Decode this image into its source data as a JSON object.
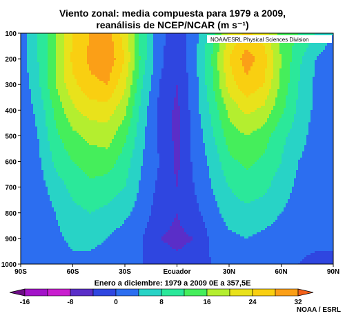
{
  "header": {
    "title_line1": "Viento zonal: media compuesta para 1979 a 2009,",
    "title_line2": "reanálisis de NCEP/NCAR (m s⁻¹)"
  },
  "plot_note": "NOAA/ESRL Physical Sciences Division",
  "footer_credit": "NOAA / ESRL",
  "chart_data": {
    "type": "heatmap",
    "title": "Viento zonal: media compuesta para 1979 a 2009, reanálisis de NCEP/NCAR (m s⁻¹)",
    "xlabel": "Enero a diciembre: 1979 a 2009 0E a 357,5E",
    "x_tick_labels": [
      "90S",
      "60S",
      "30S",
      "Ecuador",
      "30N",
      "60N",
      "90N"
    ],
    "x_tick_values": [
      -90,
      -60,
      -30,
      0,
      30,
      60,
      90
    ],
    "xlim": [
      -90,
      90
    ],
    "y_tick_labels": [
      "100",
      "200",
      "300",
      "400",
      "500",
      "600",
      "700",
      "800",
      "900",
      "1000"
    ],
    "y_tick_values": [
      100,
      200,
      300,
      400,
      500,
      600,
      700,
      800,
      900,
      1000
    ],
    "ylim": [
      1000,
      100
    ],
    "y_inverted": true,
    "colorbar": {
      "levels": [
        -20,
        -16,
        -12,
        -8,
        -4,
        0,
        4,
        8,
        12,
        16,
        20,
        24,
        28,
        32,
        36
      ],
      "tick_labels": [
        "-16",
        "-8",
        "0",
        "8",
        "16",
        "24",
        "32"
      ],
      "tick_values": [
        -16,
        -8,
        0,
        8,
        16,
        24,
        32
      ],
      "colors": [
        "#6e0d87",
        "#a313c9",
        "#c91ecf",
        "#5a2ec8",
        "#2f46e0",
        "#2c6ef0",
        "#28d3c6",
        "#2be89a",
        "#45ee5b",
        "#b4ee2f",
        "#e9e21b",
        "#f9cf11",
        "#fb9f17",
        "#f4601a"
      ]
    },
    "x": [
      -90,
      -80,
      -70,
      -60,
      -50,
      -40,
      -30,
      -20,
      -10,
      0,
      10,
      20,
      30,
      40,
      50,
      60,
      70,
      80,
      90
    ],
    "y": [
      100,
      200,
      300,
      400,
      500,
      600,
      700,
      800,
      900,
      1000
    ],
    "z": [
      [
        2,
        8,
        16,
        24,
        28,
        30,
        22,
        10,
        1,
        -2,
        2,
        10,
        21,
        25,
        22,
        14,
        12,
        8,
        4
      ],
      [
        2,
        8,
        16,
        25,
        29,
        31,
        24,
        10,
        1,
        -3,
        3,
        12,
        24,
        30,
        26,
        16,
        9,
        4,
        1
      ],
      [
        1,
        7,
        16,
        23,
        27,
        28,
        21,
        8,
        0,
        -4,
        2,
        11,
        22,
        27,
        24,
        15,
        8,
        3,
        1
      ],
      [
        1,
        5,
        13,
        19,
        22,
        22,
        17,
        6,
        -1,
        -5,
        2,
        9,
        17,
        21,
        19,
        13,
        7,
        3,
        1
      ],
      [
        1,
        4,
        11,
        15,
        17,
        18,
        13,
        5,
        -1,
        -5,
        1,
        7,
        14,
        16,
        14,
        9,
        6,
        2,
        0
      ],
      [
        1,
        3,
        9,
        12,
        14,
        14,
        10,
        4,
        0,
        -5,
        1,
        5,
        11,
        13,
        11,
        8,
        4,
        2,
        0
      ],
      [
        0,
        2,
        6,
        9,
        11,
        10,
        8,
        3,
        -1,
        -4,
        0,
        4,
        8,
        10,
        9,
        6,
        3,
        1,
        0
      ],
      [
        0,
        1,
        4,
        7,
        8,
        7,
        5,
        2,
        -2,
        -4,
        -1,
        2,
        6,
        7,
        6,
        4,
        2,
        1,
        0
      ],
      [
        0,
        1,
        3,
        5,
        5,
        4,
        2,
        0,
        -4,
        -5,
        -4,
        1,
        3,
        4,
        3,
        2,
        1,
        1,
        0
      ],
      [
        0,
        0,
        1,
        3,
        3,
        2,
        1,
        0,
        -2,
        -3,
        -2,
        0,
        1,
        2,
        1,
        1,
        0,
        -1,
        0
      ]
    ],
    "grid": false
  }
}
